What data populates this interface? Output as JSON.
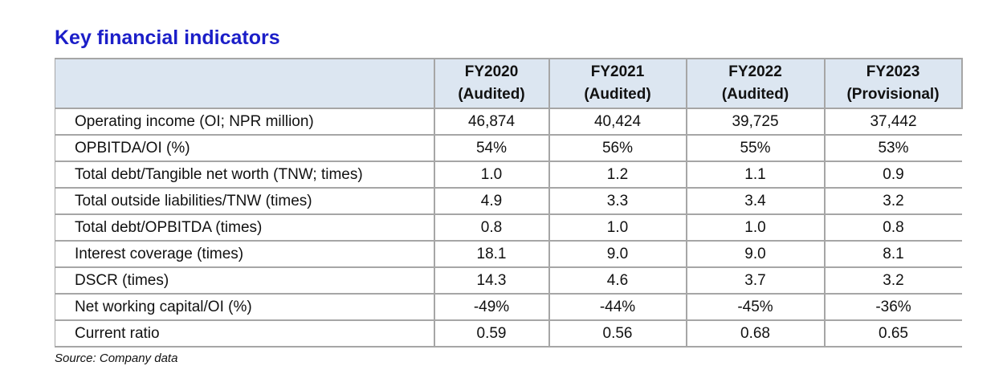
{
  "page_title": "Key financial indicators",
  "table": {
    "header": {
      "corner": "",
      "columns": [
        {
          "year": "FY2020",
          "status": "(Audited)"
        },
        {
          "year": "FY2021",
          "status": "(Audited)"
        },
        {
          "year": "FY2022",
          "status": "(Audited)"
        },
        {
          "year": "FY2023",
          "status": "(Provisional)"
        }
      ]
    },
    "rows": [
      {
        "label": "Operating income (OI; NPR million)",
        "values": [
          "46,874",
          "40,424",
          "39,725",
          "37,442"
        ]
      },
      {
        "label": "OPBITDA/OI (%)",
        "values": [
          "54%",
          "56%",
          "55%",
          "53%"
        ]
      },
      {
        "label": "Total debt/Tangible net worth (TNW; times)",
        "values": [
          "1.0",
          "1.2",
          "1.1",
          "0.9"
        ]
      },
      {
        "label": "Total outside liabilities/TNW (times)",
        "values": [
          "4.9",
          "3.3",
          "3.4",
          "3.2"
        ]
      },
      {
        "label": "Total debt/OPBITDA (times)",
        "values": [
          "0.8",
          "1.0",
          "1.0",
          "0.8"
        ]
      },
      {
        "label": "Interest coverage (times)",
        "values": [
          "18.1",
          "9.0",
          "9.0",
          "8.1"
        ]
      },
      {
        "label": "DSCR (times)",
        "values": [
          "14.3",
          "4.6",
          "3.7",
          "3.2"
        ]
      },
      {
        "label": "Net working capital/OI (%)",
        "values": [
          "-49%",
          "-44%",
          "-45%",
          "-36%"
        ]
      },
      {
        "label": "Current ratio",
        "values": [
          "0.59",
          "0.56",
          "0.68",
          "0.65"
        ]
      }
    ]
  },
  "source_note": "Source: Company data",
  "colors": {
    "title_blue": "#1b1ec8",
    "header_bg": "#dce6f1",
    "border_gray": "#a6a6a6",
    "text_black": "#111111"
  }
}
